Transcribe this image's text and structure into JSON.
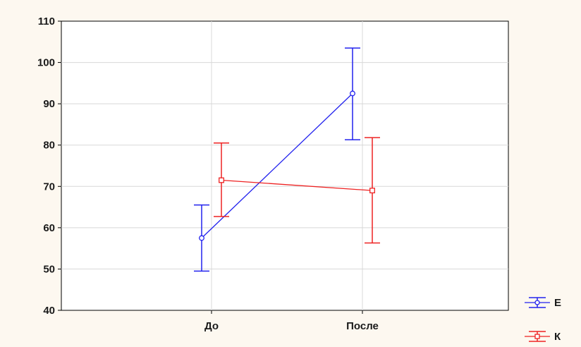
{
  "chart_data": {
    "type": "line",
    "title": "",
    "xlabel": "",
    "ylabel": "",
    "categories": [
      "До",
      "После"
    ],
    "ylim": [
      40,
      110
    ],
    "yticks": [
      40,
      50,
      60,
      70,
      80,
      90,
      100,
      110
    ],
    "grid": true,
    "legend_position": "bottom-right, outside plot",
    "series": [
      {
        "name": "E",
        "color": "#2222ee",
        "marker": "circle",
        "values": [
          57.5,
          92.5
        ],
        "lower": [
          49.5,
          81.3
        ],
        "upper": [
          65.5,
          103.5
        ]
      },
      {
        "name": "К",
        "color": "#ee2222",
        "marker": "square",
        "values": [
          71.5,
          69.0
        ],
        "lower": [
          62.7,
          56.3
        ],
        "upper": [
          80.5,
          81.8
        ]
      }
    ]
  }
}
